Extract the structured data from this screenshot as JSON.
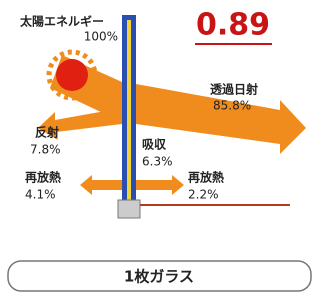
{
  "incident": {
    "label": "太陽エネルギー",
    "value": "100%"
  },
  "coefficient": "0.89",
  "transmitted": {
    "label": "透過日射",
    "value": "85.8%"
  },
  "reflected": {
    "label": "反射",
    "value": "7.8%"
  },
  "absorbed": {
    "label": "吸収",
    "value": "6.3%"
  },
  "reradiated_out": {
    "label": "再放熱",
    "value": "4.1%"
  },
  "reradiated_in": {
    "label": "再放熱",
    "value": "2.2%"
  },
  "caption": "1枚ガラス"
}
